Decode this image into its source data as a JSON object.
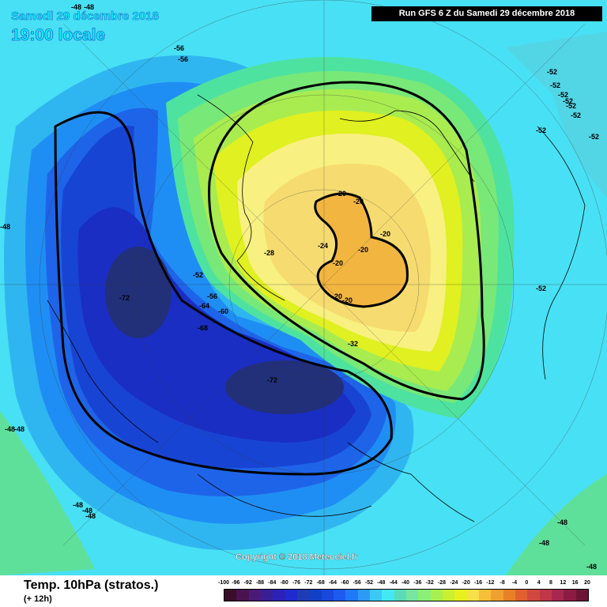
{
  "header": {
    "date": "Samedi 29 décembre 2018",
    "time": "19:00 locale",
    "run": "Run GFS 6 Z du Samedi 29 décembre 2018"
  },
  "copyright": "Copyright © 2018 Meteociel.fr",
  "footer": {
    "product": "Temp. 10hPa (stratos.)",
    "forecast_step": "(+ 12h)"
  },
  "contour_labels": [
    "-48",
    "-48",
    "-56",
    "-56",
    "-72",
    "-72",
    "-64",
    "-68",
    "-56",
    "-60",
    "-52",
    "-28",
    "-24",
    "-20",
    "-20",
    "-20",
    "-20",
    "-20",
    "-20",
    "-20",
    "-32",
    "-52",
    "-52",
    "-52",
    "-52",
    "-52",
    "-52",
    "-52",
    "-52",
    "-52",
    "-48",
    "-48",
    "-48",
    "-48",
    "-48",
    "-48",
    "-48",
    "-48",
    "-48"
  ],
  "legend": {
    "ticks": [
      "-100",
      "-96",
      "-92",
      "-88",
      "-84",
      "-80",
      "-76",
      "-72",
      "-68",
      "-64",
      "-60",
      "-56",
      "-52",
      "-48",
      "-44",
      "-40",
      "-36",
      "-32",
      "-28",
      "-24",
      "-20",
      "-16",
      "-12",
      "-8",
      "-4",
      "0",
      "4",
      "8",
      "12",
      "16",
      "20"
    ],
    "colors": [
      "#3a0e2a",
      "#4a1250",
      "#4a1a78",
      "#3a1e98",
      "#2a22b8",
      "#1f2ad0",
      "#1e3cb4",
      "#1040c8",
      "#1848dc",
      "#1e5af0",
      "#1f78f8",
      "#2d9af6",
      "#3cc8f4",
      "#43e8f4",
      "#5adcb8",
      "#78e6a0",
      "#8af078",
      "#a8f050",
      "#c8f030",
      "#e8f020",
      "#f8e048",
      "#f8c038",
      "#f0a030",
      "#e88028",
      "#e06030",
      "#d04840",
      "#c03848",
      "#a82850",
      "#8c1c44",
      "#6c1438"
    ]
  }
}
